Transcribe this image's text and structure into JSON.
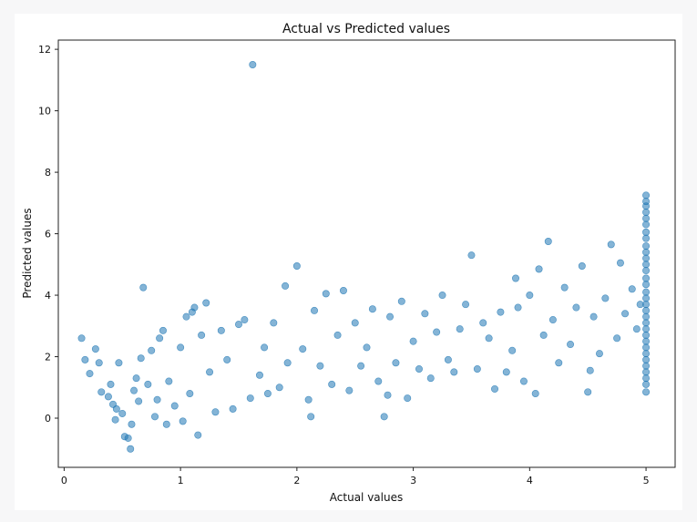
{
  "chart_data": {
    "type": "scatter",
    "title": "Actual vs Predicted values",
    "xlabel": "Actual values",
    "ylabel": "Predicted values",
    "xlim": [
      -0.05,
      5.25
    ],
    "ylim": [
      -1.6,
      12.3
    ],
    "xticks": [
      0,
      1,
      2,
      3,
      4,
      5
    ],
    "yticks": [
      0,
      2,
      4,
      6,
      8,
      10,
      12
    ],
    "grid": false,
    "legend": "none",
    "marker_color": "#1f77b4",
    "marker_alpha": 0.55,
    "points": [
      [
        0.15,
        2.6
      ],
      [
        0.18,
        1.9
      ],
      [
        0.22,
        1.45
      ],
      [
        0.27,
        2.25
      ],
      [
        0.3,
        1.8
      ],
      [
        0.32,
        0.85
      ],
      [
        0.38,
        0.7
      ],
      [
        0.4,
        1.1
      ],
      [
        0.42,
        0.45
      ],
      [
        0.44,
        -0.05
      ],
      [
        0.45,
        0.3
      ],
      [
        0.47,
        1.8
      ],
      [
        0.5,
        0.15
      ],
      [
        0.52,
        -0.6
      ],
      [
        0.55,
        -0.65
      ],
      [
        0.57,
        -1.0
      ],
      [
        0.58,
        -0.2
      ],
      [
        0.6,
        0.9
      ],
      [
        0.62,
        1.3
      ],
      [
        0.64,
        0.55
      ],
      [
        0.66,
        1.95
      ],
      [
        0.68,
        4.25
      ],
      [
        0.72,
        1.1
      ],
      [
        0.75,
        2.2
      ],
      [
        0.78,
        0.05
      ],
      [
        0.8,
        0.6
      ],
      [
        0.82,
        2.6
      ],
      [
        0.85,
        2.85
      ],
      [
        0.88,
        -0.2
      ],
      [
        0.9,
        1.2
      ],
      [
        0.95,
        0.4
      ],
      [
        1.0,
        2.3
      ],
      [
        1.02,
        -0.1
      ],
      [
        1.05,
        3.3
      ],
      [
        1.08,
        0.8
      ],
      [
        1.1,
        3.45
      ],
      [
        1.12,
        3.6
      ],
      [
        1.15,
        -0.55
      ],
      [
        1.18,
        2.7
      ],
      [
        1.22,
        3.75
      ],
      [
        1.25,
        1.5
      ],
      [
        1.3,
        0.2
      ],
      [
        1.35,
        2.85
      ],
      [
        1.4,
        1.9
      ],
      [
        1.45,
        0.3
      ],
      [
        1.5,
        3.05
      ],
      [
        1.55,
        3.2
      ],
      [
        1.6,
        0.65
      ],
      [
        1.62,
        11.5
      ],
      [
        1.68,
        1.4
      ],
      [
        1.72,
        2.3
      ],
      [
        1.75,
        0.8
      ],
      [
        1.8,
        3.1
      ],
      [
        1.85,
        1.0
      ],
      [
        1.9,
        4.3
      ],
      [
        1.92,
        1.8
      ],
      [
        2.0,
        4.95
      ],
      [
        2.05,
        2.25
      ],
      [
        2.1,
        0.6
      ],
      [
        2.12,
        0.05
      ],
      [
        2.15,
        3.5
      ],
      [
        2.2,
        1.7
      ],
      [
        2.25,
        4.05
      ],
      [
        2.3,
        1.1
      ],
      [
        2.35,
        2.7
      ],
      [
        2.4,
        4.15
      ],
      [
        2.45,
        0.9
      ],
      [
        2.5,
        3.1
      ],
      [
        2.55,
        1.7
      ],
      [
        2.6,
        2.3
      ],
      [
        2.65,
        3.55
      ],
      [
        2.7,
        1.2
      ],
      [
        2.75,
        0.05
      ],
      [
        2.78,
        0.75
      ],
      [
        2.8,
        3.3
      ],
      [
        2.85,
        1.8
      ],
      [
        2.9,
        3.8
      ],
      [
        2.95,
        0.65
      ],
      [
        3.0,
        2.5
      ],
      [
        3.05,
        1.6
      ],
      [
        3.1,
        3.4
      ],
      [
        3.15,
        1.3
      ],
      [
        3.2,
        2.8
      ],
      [
        3.25,
        4.0
      ],
      [
        3.3,
        1.9
      ],
      [
        3.35,
        1.5
      ],
      [
        3.4,
        2.9
      ],
      [
        3.45,
        3.7
      ],
      [
        3.5,
        5.3
      ],
      [
        3.55,
        1.6
      ],
      [
        3.6,
        3.1
      ],
      [
        3.65,
        2.6
      ],
      [
        3.7,
        0.95
      ],
      [
        3.75,
        3.45
      ],
      [
        3.8,
        1.5
      ],
      [
        3.85,
        2.2
      ],
      [
        3.88,
        4.55
      ],
      [
        3.9,
        3.6
      ],
      [
        3.95,
        1.2
      ],
      [
        4.0,
        4.0
      ],
      [
        4.05,
        0.8
      ],
      [
        4.08,
        4.85
      ],
      [
        4.12,
        2.7
      ],
      [
        4.16,
        5.75
      ],
      [
        4.2,
        3.2
      ],
      [
        4.25,
        1.8
      ],
      [
        4.3,
        4.25
      ],
      [
        4.35,
        2.4
      ],
      [
        4.4,
        3.6
      ],
      [
        4.45,
        4.95
      ],
      [
        4.5,
        0.85
      ],
      [
        4.52,
        1.55
      ],
      [
        4.55,
        3.3
      ],
      [
        4.6,
        2.1
      ],
      [
        4.65,
        3.9
      ],
      [
        4.7,
        5.65
      ],
      [
        4.75,
        2.6
      ],
      [
        4.78,
        5.05
      ],
      [
        4.82,
        3.4
      ],
      [
        4.88,
        4.2
      ],
      [
        4.92,
        2.9
      ],
      [
        4.95,
        3.7
      ],
      [
        5.0,
        7.25
      ],
      [
        5.0,
        7.05
      ],
      [
        5.0,
        6.9
      ],
      [
        5.0,
        6.7
      ],
      [
        5.0,
        6.5
      ],
      [
        5.0,
        6.3
      ],
      [
        5.0,
        6.05
      ],
      [
        5.0,
        5.85
      ],
      [
        5.0,
        5.6
      ],
      [
        5.0,
        5.4
      ],
      [
        5.0,
        5.2
      ],
      [
        5.0,
        5.0
      ],
      [
        5.0,
        4.8
      ],
      [
        5.0,
        4.55
      ],
      [
        5.0,
        4.35
      ],
      [
        5.0,
        4.1
      ],
      [
        5.0,
        3.9
      ],
      [
        5.0,
        3.7
      ],
      [
        5.0,
        3.5
      ],
      [
        5.0,
        3.3
      ],
      [
        5.0,
        3.1
      ],
      [
        5.0,
        2.9
      ],
      [
        5.0,
        2.7
      ],
      [
        5.0,
        2.5
      ],
      [
        5.0,
        2.3
      ],
      [
        5.0,
        2.1
      ],
      [
        5.0,
        1.9
      ],
      [
        5.0,
        1.7
      ],
      [
        5.0,
        1.5
      ],
      [
        5.0,
        1.3
      ],
      [
        5.0,
        1.1
      ],
      [
        5.0,
        0.85
      ]
    ]
  }
}
